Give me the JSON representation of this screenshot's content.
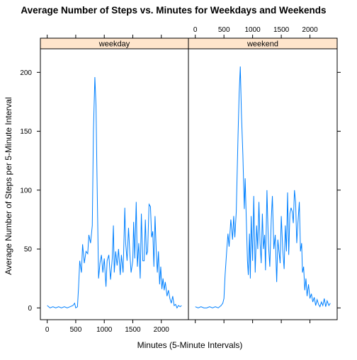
{
  "chart_data": {
    "type": "line",
    "title": "Average Number of Steps vs. Minutes for Weekdays and Weekends",
    "xlabel": "Minutes (5-Minute Intervals)",
    "ylabel": "Average Number of Steps per 5-Minute Interval",
    "xlim": [
      -120,
      2475
    ],
    "ylim": [
      -10,
      220
    ],
    "x_ticks": [
      0,
      500,
      1000,
      1500,
      2000
    ],
    "y_ticks": [
      0,
      50,
      100,
      150,
      200
    ],
    "grid": false,
    "panels": [
      {
        "name": "weekday",
        "points": [
          [
            0,
            2
          ],
          [
            50,
            0
          ],
          [
            100,
            1
          ],
          [
            150,
            0
          ],
          [
            200,
            1
          ],
          [
            250,
            0
          ],
          [
            300,
            1
          ],
          [
            350,
            0
          ],
          [
            400,
            1
          ],
          [
            450,
            2
          ],
          [
            480,
            4
          ],
          [
            500,
            0
          ],
          [
            530,
            1
          ],
          [
            550,
            18
          ],
          [
            570,
            40
          ],
          [
            600,
            30
          ],
          [
            620,
            54
          ],
          [
            650,
            38
          ],
          [
            680,
            48
          ],
          [
            710,
            46
          ],
          [
            730,
            62
          ],
          [
            760,
            55
          ],
          [
            790,
            70
          ],
          [
            810,
            150
          ],
          [
            835,
            196
          ],
          [
            855,
            172
          ],
          [
            870,
            120
          ],
          [
            900,
            25
          ],
          [
            925,
            38
          ],
          [
            950,
            45
          ],
          [
            975,
            30
          ],
          [
            1000,
            42
          ],
          [
            1030,
            18
          ],
          [
            1050,
            40
          ],
          [
            1080,
            45
          ],
          [
            1110,
            24
          ],
          [
            1140,
            42
          ],
          [
            1160,
            70
          ],
          [
            1175,
            30
          ],
          [
            1200,
            48
          ],
          [
            1225,
            36
          ],
          [
            1250,
            50
          ],
          [
            1280,
            28
          ],
          [
            1300,
            45
          ],
          [
            1330,
            30
          ],
          [
            1360,
            85
          ],
          [
            1375,
            55
          ],
          [
            1400,
            40
          ],
          [
            1425,
            68
          ],
          [
            1450,
            45
          ],
          [
            1470,
            30
          ],
          [
            1500,
            40
          ],
          [
            1515,
            73
          ],
          [
            1535,
            42
          ],
          [
            1560,
            90
          ],
          [
            1580,
            35
          ],
          [
            1605,
            55
          ],
          [
            1630,
            25
          ],
          [
            1650,
            80
          ],
          [
            1675,
            40
          ],
          [
            1700,
            40
          ],
          [
            1720,
            75
          ],
          [
            1740,
            45
          ],
          [
            1760,
            48
          ],
          [
            1785,
            88
          ],
          [
            1810,
            86
          ],
          [
            1830,
            60
          ],
          [
            1850,
            65
          ],
          [
            1870,
            35
          ],
          [
            1890,
            78
          ],
          [
            1910,
            50
          ],
          [
            1930,
            30
          ],
          [
            1950,
            48
          ],
          [
            1970,
            20
          ],
          [
            1990,
            35
          ],
          [
            2010,
            16
          ],
          [
            2030,
            25
          ],
          [
            2050,
            15
          ],
          [
            2070,
            22
          ],
          [
            2100,
            10
          ],
          [
            2125,
            15
          ],
          [
            2150,
            8
          ],
          [
            2175,
            4
          ],
          [
            2200,
            10
          ],
          [
            2225,
            2
          ],
          [
            2250,
            3
          ],
          [
            2275,
            0
          ],
          [
            2300,
            2
          ],
          [
            2330,
            1
          ],
          [
            2355,
            2
          ]
        ]
      },
      {
        "name": "weekend",
        "points": [
          [
            0,
            1
          ],
          [
            50,
            0
          ],
          [
            100,
            1
          ],
          [
            150,
            0
          ],
          [
            200,
            0
          ],
          [
            250,
            1
          ],
          [
            300,
            0
          ],
          [
            350,
            1
          ],
          [
            400,
            0
          ],
          [
            450,
            2
          ],
          [
            480,
            4
          ],
          [
            500,
            8
          ],
          [
            520,
            28
          ],
          [
            550,
            50
          ],
          [
            570,
            63
          ],
          [
            590,
            52
          ],
          [
            620,
            75
          ],
          [
            650,
            58
          ],
          [
            670,
            78
          ],
          [
            690,
            60
          ],
          [
            715,
            82
          ],
          [
            745,
            145
          ],
          [
            765,
            182
          ],
          [
            785,
            205
          ],
          [
            805,
            165
          ],
          [
            830,
            130
          ],
          [
            855,
            84
          ],
          [
            870,
            110
          ],
          [
            890,
            75
          ],
          [
            910,
            40
          ],
          [
            925,
            28
          ],
          [
            945,
            63
          ],
          [
            960,
            25
          ],
          [
            975,
            78
          ],
          [
            1000,
            40
          ],
          [
            1020,
            95
          ],
          [
            1045,
            30
          ],
          [
            1070,
            70
          ],
          [
            1090,
            50
          ],
          [
            1110,
            90
          ],
          [
            1130,
            55
          ],
          [
            1150,
            38
          ],
          [
            1170,
            80
          ],
          [
            1190,
            50
          ],
          [
            1210,
            62
          ],
          [
            1225,
            32
          ],
          [
            1250,
            100
          ],
          [
            1275,
            55
          ],
          [
            1300,
            35
          ],
          [
            1325,
            75
          ],
          [
            1345,
            95
          ],
          [
            1370,
            50
          ],
          [
            1395,
            62
          ],
          [
            1420,
            22
          ],
          [
            1440,
            58
          ],
          [
            1460,
            48
          ],
          [
            1480,
            38
          ],
          [
            1500,
            78
          ],
          [
            1525,
            50
          ],
          [
            1550,
            33
          ],
          [
            1570,
            70
          ],
          [
            1590,
            48
          ],
          [
            1610,
            98
          ],
          [
            1630,
            45
          ],
          [
            1650,
            80
          ],
          [
            1670,
            85
          ],
          [
            1690,
            82
          ],
          [
            1710,
            72
          ],
          [
            1730,
            100
          ],
          [
            1750,
            90
          ],
          [
            1770,
            55
          ],
          [
            1790,
            72
          ],
          [
            1815,
            90
          ],
          [
            1835,
            48
          ],
          [
            1855,
            55
          ],
          [
            1870,
            30
          ],
          [
            1890,
            35
          ],
          [
            1910,
            15
          ],
          [
            1930,
            25
          ],
          [
            1950,
            10
          ],
          [
            1975,
            20
          ],
          [
            2000,
            8
          ],
          [
            2025,
            12
          ],
          [
            2050,
            5
          ],
          [
            2075,
            9
          ],
          [
            2100,
            2
          ],
          [
            2125,
            7
          ],
          [
            2150,
            3
          ],
          [
            2175,
            1
          ],
          [
            2200,
            5
          ],
          [
            2225,
            2
          ],
          [
            2250,
            8
          ],
          [
            2275,
            1
          ],
          [
            2300,
            6
          ],
          [
            2330,
            2
          ],
          [
            2355,
            4
          ]
        ]
      }
    ],
    "line_color": "#0080ff",
    "strip_color": "#ffe5cc"
  }
}
